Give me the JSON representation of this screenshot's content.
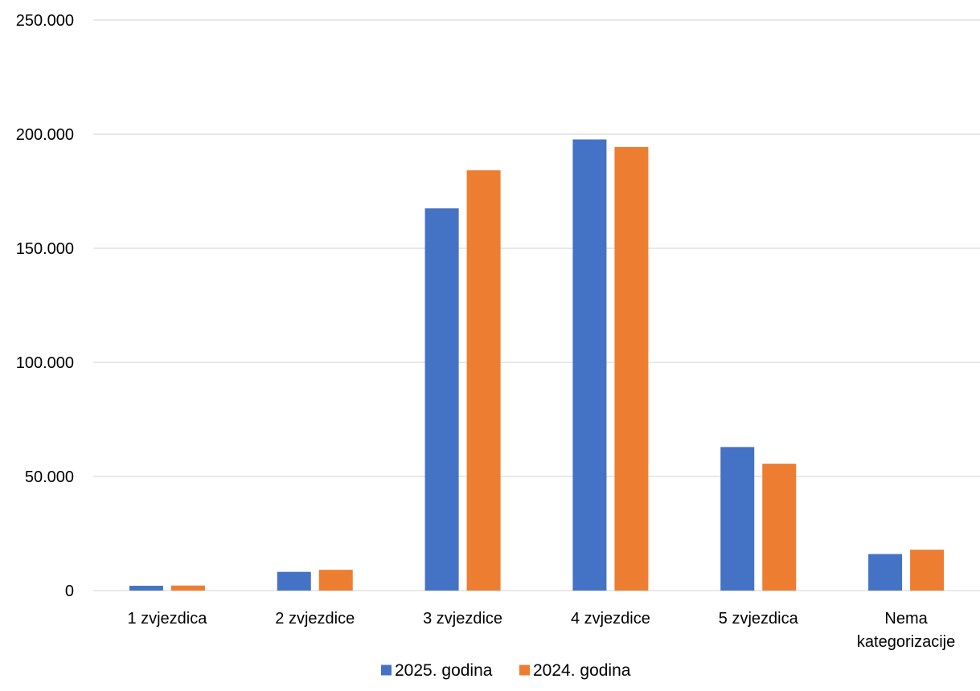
{
  "chart_data": {
    "type": "bar",
    "title": "",
    "xlabel": "",
    "ylabel": "",
    "categories": [
      [
        "1 zvjezdica"
      ],
      [
        "2 zvjezdice"
      ],
      [
        "3 zvjezdice"
      ],
      [
        "4 zvjezdice"
      ],
      [
        "5 zvjezdica"
      ],
      [
        "Nema",
        "kategorizacije"
      ]
    ],
    "series": [
      {
        "name": "2025. godina",
        "color": "#4472C4",
        "values": [
          2100,
          8200,
          167500,
          197700,
          62900,
          16000
        ]
      },
      {
        "name": "2024. godina",
        "color": "#ED7D31",
        "values": [
          2200,
          9100,
          184200,
          194400,
          55600,
          17900
        ]
      }
    ],
    "ylim": [
      0,
      250000
    ],
    "yticks": [
      0,
      50000,
      100000,
      150000,
      200000,
      250000
    ],
    "ytick_labels": [
      "0",
      "50.000",
      "100.000",
      "150.000",
      "200.000",
      "250.000"
    ],
    "grid": true,
    "grid_color": "#D9D9D9",
    "legend_position": "bottom"
  }
}
